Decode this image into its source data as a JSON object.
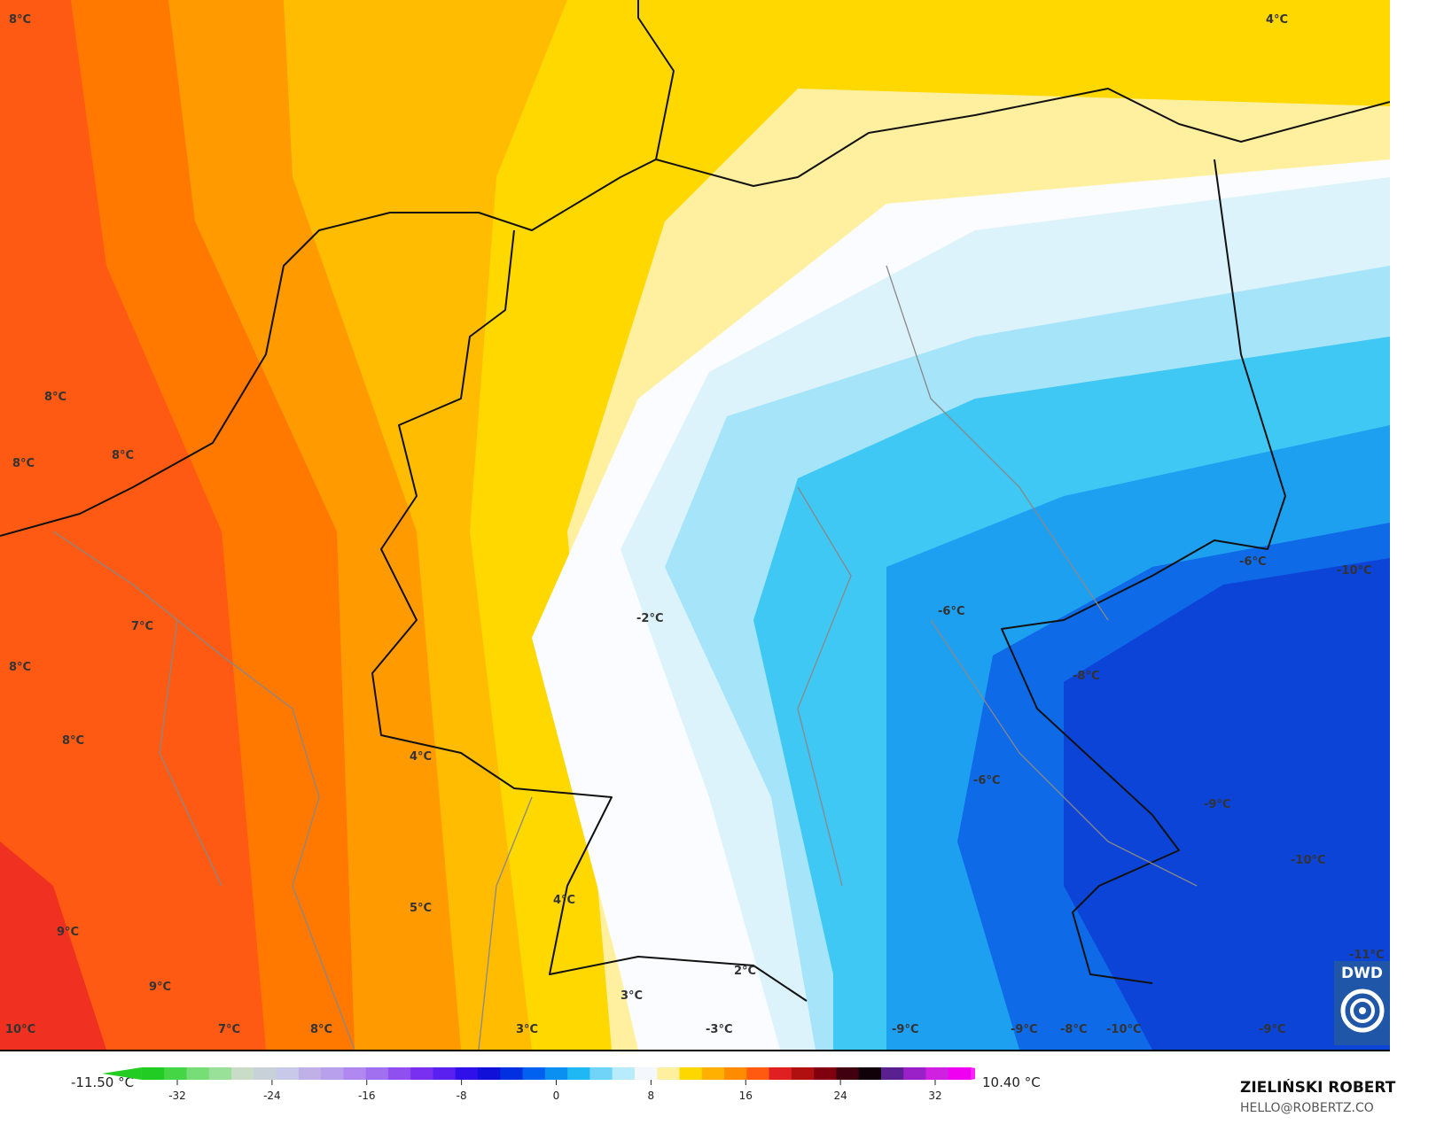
{
  "map": {
    "variable_unit": "°C",
    "labels": [
      {
        "text": "8°C"
      },
      {
        "text": "4°C"
      },
      {
        "text": "8°C"
      },
      {
        "text": "8°C"
      },
      {
        "text": "8°C"
      },
      {
        "text": "7°C"
      },
      {
        "text": "8°C"
      },
      {
        "text": "8°C"
      },
      {
        "text": "4°C"
      },
      {
        "text": "5°C"
      },
      {
        "text": "4°C"
      },
      {
        "text": "9°C"
      },
      {
        "text": "9°C"
      },
      {
        "text": "10°C"
      },
      {
        "text": "7°C"
      },
      {
        "text": "8°C"
      },
      {
        "text": "3°C"
      },
      {
        "text": "3°C"
      },
      {
        "text": "2°C"
      },
      {
        "text": "-3°C"
      },
      {
        "text": "-2°C"
      },
      {
        "text": "-6°C"
      },
      {
        "text": "-6°C"
      },
      {
        "text": "-10°C"
      },
      {
        "text": "-8°C"
      },
      {
        "text": "-6°C"
      },
      {
        "text": "-9°C"
      },
      {
        "text": "-10°C"
      },
      {
        "text": "-11°C"
      },
      {
        "text": "-9°C"
      },
      {
        "text": "-9°C"
      },
      {
        "text": "-8°C"
      },
      {
        "text": "-10°C"
      },
      {
        "text": "-9°C"
      }
    ]
  },
  "colorbar": {
    "min_value": "-11.50 °C",
    "max_value": "10.40 °C",
    "ticks": [
      "-32",
      "-24",
      "-16",
      "-8",
      "0",
      "8",
      "16",
      "24",
      "32"
    ],
    "colors": [
      "#22cc22",
      "#44d644",
      "#77dd77",
      "#99e099",
      "#c8dcc8",
      "#c8d0d8",
      "#c8c8e8",
      "#c0b0e8",
      "#b8a0ec",
      "#b088f0",
      "#a070f0",
      "#9050f0",
      "#7a30f0",
      "#5a20f0",
      "#3010e8",
      "#1010d8",
      "#0030e0",
      "#0060f0",
      "#0a90f0",
      "#20b8f4",
      "#70d4f8",
      "#b8ecfc",
      "#f4f8fc",
      "#fff0a0",
      "#ffd700",
      "#ffb000",
      "#ff8c00",
      "#ff5a10",
      "#e02020",
      "#b01010",
      "#800010",
      "#400010",
      "#100008",
      "#5a2090",
      "#9a20c8",
      "#d020e0",
      "#f000f0"
    ],
    "arrow_colors": [
      "#22cc22",
      "#ff20ff"
    ]
  },
  "credits": {
    "author": "ZIELIŃSKI ROBERT",
    "email": "HELLO@ROBERTZ.CO",
    "logo_text": "DWD"
  }
}
